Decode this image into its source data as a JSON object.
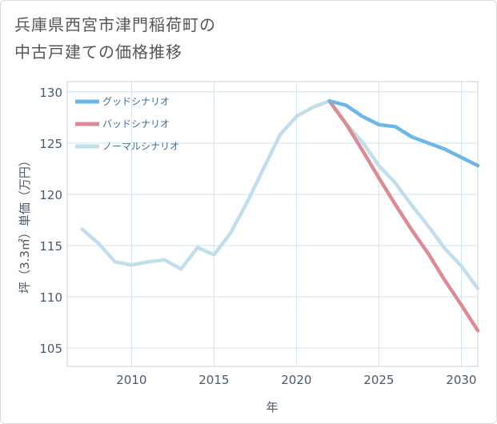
{
  "title_line1": "兵庫県西宮市津門稲荷町の",
  "title_line2": "中古戸建ての価格推移",
  "chart_data": {
    "type": "line",
    "title": "兵庫県西宮市津門稲荷町の中古戸建ての価格推移",
    "xlabel": "年",
    "ylabel": "坪（3.3㎡）単価（万円）",
    "xlim": [
      2006.1,
      2031
    ],
    "ylim": [
      103.2,
      131
    ],
    "xticks": [
      2010,
      2015,
      2020,
      2025,
      2030
    ],
    "yticks": [
      105,
      110,
      115,
      120,
      125,
      130
    ],
    "grid": true,
    "legend_position": "top-left",
    "series": [
      {
        "name": "グッドシナリオ",
        "color": "#6cb6e8",
        "x": [
          2022,
          2023,
          2024,
          2025,
          2026,
          2027,
          2028,
          2029,
          2030,
          2031
        ],
        "y": [
          129.1,
          128.7,
          127.6,
          126.8,
          126.6,
          125.6,
          125.0,
          124.4,
          123.6,
          122.8
        ]
      },
      {
        "name": "バッドシナリオ",
        "color": "#dc8b94",
        "x": [
          2022,
          2023,
          2024,
          2025,
          2026,
          2027,
          2028,
          2029,
          2030,
          2031
        ],
        "y": [
          129.1,
          126.9,
          124.3,
          121.6,
          119.0,
          116.5,
          114.2,
          111.6,
          109.2,
          106.7
        ]
      },
      {
        "name": "ノーマルシナリオ",
        "color": "#c0dfea",
        "x": [
          2007,
          2008,
          2009,
          2010,
          2011,
          2012,
          2013,
          2014,
          2015,
          2016,
          2017,
          2018,
          2019,
          2020,
          2021,
          2022,
          2023,
          2024,
          2025,
          2026,
          2027,
          2028,
          2029,
          2030,
          2031
        ],
        "y": [
          116.6,
          115.2,
          113.4,
          113.1,
          113.4,
          113.6,
          112.7,
          114.8,
          114.1,
          116.2,
          119.2,
          122.5,
          125.8,
          127.6,
          128.5,
          129.1,
          126.9,
          125.1,
          122.8,
          121.1,
          118.9,
          116.9,
          114.7,
          113.0,
          110.8
        ]
      }
    ]
  }
}
